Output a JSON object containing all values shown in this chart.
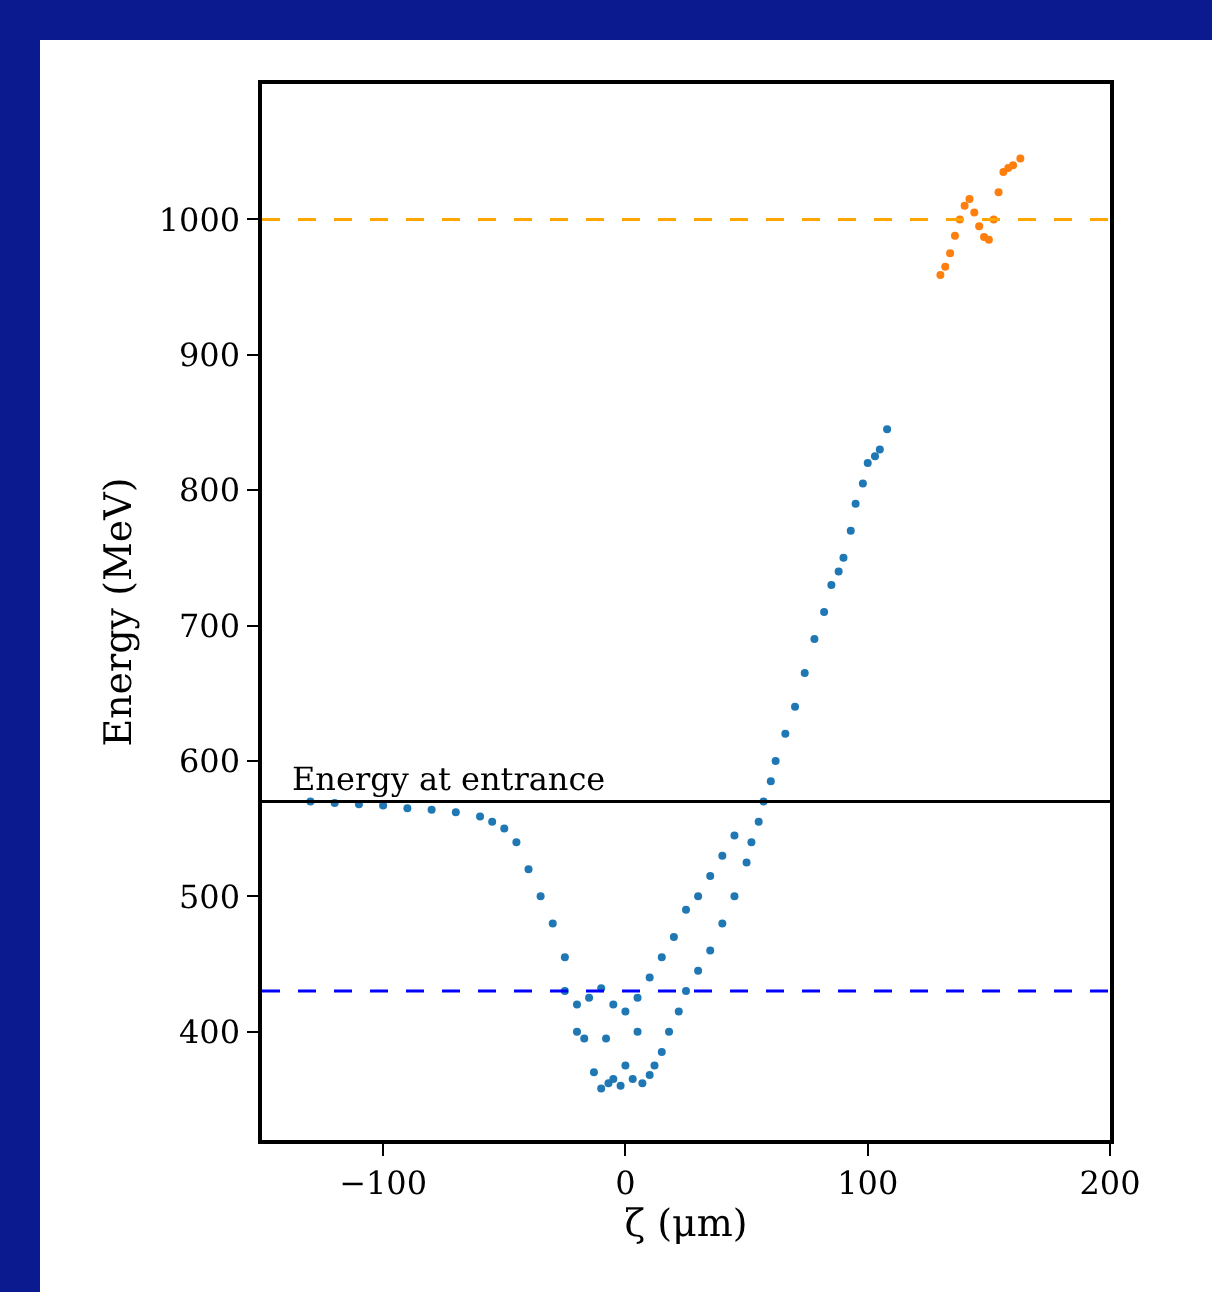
{
  "chart_data": {
    "type": "scatter",
    "xlabel": "ζ (μm)",
    "ylabel": "Energy (MeV)",
    "xlim": [
      -150,
      200
    ],
    "xticks": [
      -100,
      0,
      100,
      200
    ],
    "ylim": [
      320,
      1100
    ],
    "yticks": [
      400,
      500,
      600,
      700,
      800,
      900,
      1000
    ],
    "grid": false,
    "marker": "circle",
    "series": [
      {
        "color": "#1f77b4",
        "x": [
          -130,
          -120,
          -110,
          -100,
          -90,
          -80,
          -70,
          -60,
          -55,
          -50,
          -45,
          -40,
          -35,
          -30,
          -25,
          -20,
          -17,
          -13,
          -10,
          -7,
          -5,
          -2,
          0,
          3,
          7,
          10,
          12,
          15,
          18,
          22,
          25,
          30,
          35,
          40,
          45,
          50,
          52,
          55,
          57,
          60,
          62,
          66,
          70,
          74,
          78,
          82,
          85,
          88,
          90,
          93,
          95,
          98,
          100,
          103,
          105,
          108,
          -25,
          -15,
          -10,
          -5,
          0,
          5,
          10,
          15,
          20,
          25,
          30,
          35,
          40,
          45,
          -20,
          -8,
          5
        ],
        "values": [
          570,
          569,
          568,
          567,
          565,
          564,
          562,
          559,
          555,
          550,
          540,
          520,
          500,
          480,
          455,
          420,
          395,
          370,
          358,
          362,
          365,
          360,
          375,
          365,
          362,
          368,
          375,
          385,
          400,
          415,
          430,
          445,
          460,
          480,
          500,
          525,
          540,
          555,
          570,
          585,
          600,
          620,
          640,
          665,
          690,
          710,
          730,
          740,
          750,
          770,
          790,
          805,
          820,
          825,
          830,
          845,
          430,
          425,
          432,
          420,
          415,
          425,
          440,
          455,
          470,
          490,
          500,
          515,
          530,
          545,
          400,
          395,
          400
        ]
      },
      {
        "color": "#ff7f0e",
        "x": [
          130,
          132,
          134,
          136,
          138,
          140,
          142,
          144,
          146,
          148,
          150,
          152,
          154,
          156,
          158,
          160,
          163
        ],
        "values": [
          959,
          965,
          975,
          988,
          1000,
          1010,
          1015,
          1005,
          995,
          987,
          985,
          1000,
          1020,
          1035,
          1038,
          1040,
          1045
        ]
      }
    ],
    "ref_lines": [
      {
        "axis": "y",
        "value": 1000,
        "color": "#ffa500",
        "line_style": "dashed"
      },
      {
        "axis": "y",
        "value": 570,
        "label": "Energy at entrance",
        "color": "#000000",
        "line_style": "solid"
      },
      {
        "axis": "y",
        "value": 430,
        "color": "#0000ff",
        "line_style": "dashed"
      }
    ]
  }
}
